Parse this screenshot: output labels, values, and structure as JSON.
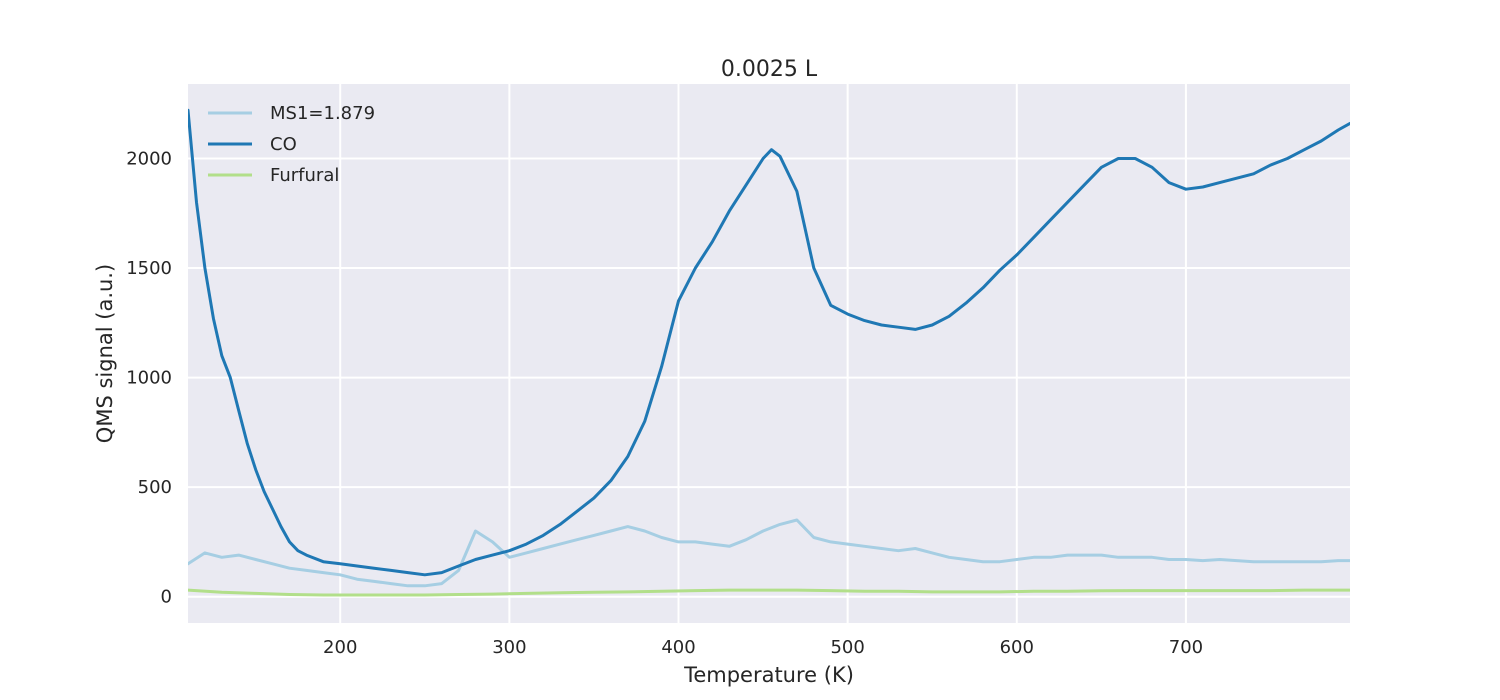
{
  "chart_data": {
    "type": "line",
    "title": "0.0025 L",
    "xlabel": "Temperature (K)",
    "ylabel": "QMS signal (a.u.)",
    "xlim": [
      110,
      797
    ],
    "ylim": [
      -120,
      2340
    ],
    "xticks": [
      200,
      300,
      400,
      500,
      600,
      700
    ],
    "yticks": [
      0,
      500,
      1000,
      1500,
      2000
    ],
    "grid": true,
    "legend_position": "top-left",
    "background_color": "#eaeaf2",
    "series": [
      {
        "name": "MS1=1.879",
        "color": "#a6cee3",
        "x": [
          110,
          120,
          130,
          140,
          150,
          160,
          170,
          180,
          190,
          200,
          210,
          220,
          230,
          240,
          250,
          260,
          270,
          280,
          290,
          300,
          310,
          320,
          330,
          340,
          350,
          360,
          370,
          380,
          390,
          400,
          410,
          420,
          430,
          440,
          450,
          460,
          470,
          480,
          490,
          500,
          510,
          520,
          530,
          540,
          550,
          560,
          570,
          580,
          590,
          600,
          610,
          620,
          630,
          640,
          650,
          660,
          670,
          680,
          690,
          700,
          710,
          720,
          730,
          740,
          750,
          760,
          770,
          780,
          790,
          797
        ],
        "y": [
          150,
          200,
          180,
          190,
          170,
          150,
          130,
          120,
          110,
          100,
          80,
          70,
          60,
          50,
          50,
          60,
          120,
          300,
          250,
          180,
          200,
          220,
          240,
          260,
          280,
          300,
          320,
          300,
          270,
          250,
          250,
          240,
          230,
          260,
          300,
          330,
          350,
          270,
          250,
          240,
          230,
          220,
          210,
          220,
          200,
          180,
          170,
          160,
          160,
          170,
          180,
          180,
          190,
          190,
          190,
          180,
          180,
          180,
          170,
          170,
          165,
          170,
          165,
          160,
          160,
          160,
          160,
          160,
          165,
          165
        ]
      },
      {
        "name": "CO",
        "color": "#1f78b4",
        "x": [
          110,
          115,
          120,
          125,
          130,
          135,
          140,
          145,
          150,
          155,
          160,
          165,
          170,
          175,
          180,
          190,
          200,
          210,
          220,
          230,
          240,
          250,
          260,
          270,
          280,
          290,
          300,
          310,
          320,
          330,
          340,
          350,
          360,
          370,
          380,
          390,
          400,
          410,
          420,
          430,
          440,
          450,
          455,
          460,
          470,
          480,
          490,
          500,
          510,
          520,
          530,
          540,
          550,
          560,
          570,
          580,
          590,
          600,
          610,
          620,
          630,
          640,
          650,
          660,
          670,
          680,
          690,
          700,
          710,
          720,
          730,
          740,
          750,
          760,
          770,
          780,
          790,
          797
        ],
        "y": [
          2220,
          1800,
          1500,
          1270,
          1100,
          1000,
          850,
          700,
          580,
          480,
          400,
          320,
          250,
          210,
          190,
          160,
          150,
          140,
          130,
          120,
          110,
          100,
          110,
          140,
          170,
          190,
          210,
          240,
          280,
          330,
          390,
          450,
          530,
          640,
          800,
          1050,
          1350,
          1500,
          1620,
          1760,
          1880,
          2000,
          2040,
          2010,
          1850,
          1500,
          1330,
          1290,
          1260,
          1240,
          1230,
          1220,
          1240,
          1280,
          1340,
          1410,
          1490,
          1560,
          1640,
          1720,
          1800,
          1880,
          1960,
          2000,
          2000,
          1960,
          1890,
          1860,
          1870,
          1890,
          1910,
          1930,
          1970,
          2000,
          2040,
          2080,
          2130,
          2160
        ]
      },
      {
        "name": "Furfural",
        "color": "#b2df8a",
        "x": [
          110,
          130,
          150,
          170,
          190,
          210,
          230,
          250,
          270,
          290,
          310,
          330,
          350,
          370,
          390,
          410,
          430,
          450,
          470,
          490,
          510,
          530,
          550,
          570,
          590,
          610,
          630,
          650,
          670,
          690,
          710,
          730,
          750,
          770,
          797
        ],
        "y": [
          30,
          20,
          15,
          10,
          8,
          8,
          8,
          8,
          10,
          12,
          15,
          18,
          20,
          22,
          25,
          28,
          30,
          30,
          30,
          28,
          25,
          25,
          22,
          22,
          22,
          25,
          25,
          27,
          28,
          28,
          28,
          28,
          28,
          30,
          30
        ]
      }
    ]
  }
}
